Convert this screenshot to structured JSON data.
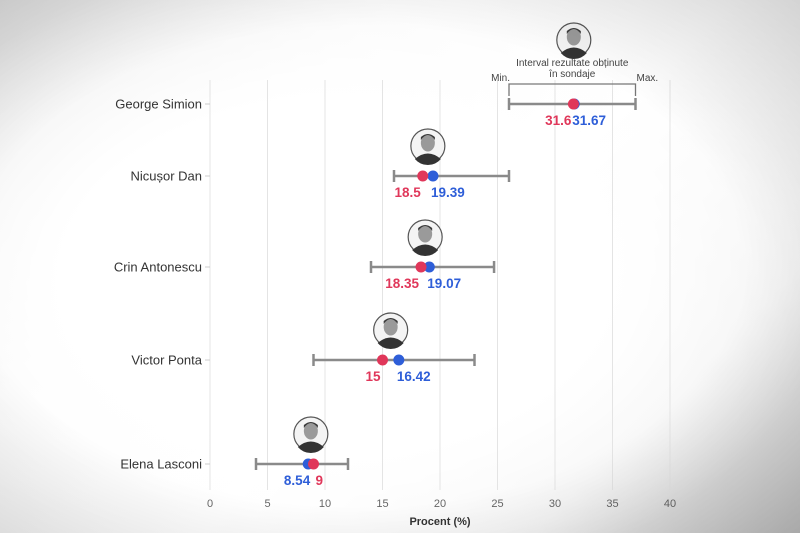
{
  "chart_data": {
    "type": "dot-range",
    "title": "",
    "xlabel": "Procent (%)",
    "ylabel": "",
    "xlim": [
      0,
      40
    ],
    "xticks": [
      0,
      5,
      10,
      15,
      20,
      25,
      30,
      35,
      40
    ],
    "grid": true,
    "colors": {
      "red": "#e0375a",
      "blue": "#2e5ed8",
      "range": "#8a8a8a"
    },
    "annotation": {
      "text_line1": "Interval rezultate obținute",
      "text_line2": "în sondaje",
      "min_label": "Min.",
      "max_label": "Max."
    },
    "candidates": [
      {
        "name": "George Simion",
        "red": 31.6,
        "blue": 31.67,
        "range": [
          26,
          37
        ],
        "photo": "portrait-george-simion"
      },
      {
        "name": "Nicușor Dan",
        "red": 18.5,
        "blue": 19.39,
        "range": [
          16,
          26
        ],
        "photo": "portrait-nicusor-dan"
      },
      {
        "name": "Crin Antonescu",
        "red": 18.35,
        "blue": 19.07,
        "range": [
          14,
          24.7
        ],
        "photo": "portrait-crin-antonescu"
      },
      {
        "name": "Victor Ponta",
        "red": 15,
        "blue": 16.42,
        "range": [
          9,
          23
        ],
        "photo": "portrait-victor-ponta"
      },
      {
        "name": "Elena Lasconi",
        "red": 9,
        "blue": 8.54,
        "range": [
          4,
          12
        ],
        "photo": "portrait-elena-lasconi"
      }
    ]
  }
}
